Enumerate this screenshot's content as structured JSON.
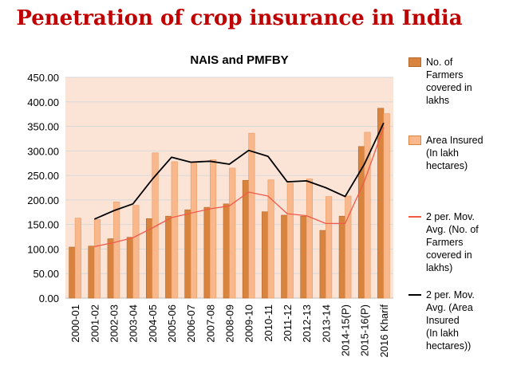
{
  "slide": {
    "title": "Penetration of crop insurance in India"
  },
  "chart_data": {
    "type": "bar",
    "title": "NAIS and PMFBY",
    "xlabel": "",
    "ylabel": "",
    "ylim": [
      0,
      450
    ],
    "yticks": [
      "0.00",
      "50.00",
      "100.00",
      "150.00",
      "200.00",
      "250.00",
      "300.00",
      "350.00",
      "400.00",
      "450.00"
    ],
    "grid": true,
    "legend_position": "right",
    "categories": [
      "2000-01",
      "2001-02",
      "2002-03",
      "2003-04",
      "2004-05",
      "2005-06",
      "2006-07",
      "2007-08",
      "2008-09",
      "2009-10",
      "2010-11",
      "2011-12",
      "2012-13",
      "2013-14",
      "2014-15(P)",
      "2015-16(P)",
      "2016 Kharif"
    ],
    "series": [
      {
        "name": "No. of Farmers covered in lakhs",
        "kind": "bar",
        "color": "#d9843e",
        "values": [
          104,
          106,
          121,
          124,
          162,
          167,
          180,
          185,
          192,
          240,
          176,
          169,
          167,
          138,
          167,
          309,
          387
        ]
      },
      {
        "name": "Area Insured (In lakh hectares)",
        "kind": "bar",
        "color": "#f8b88b",
        "values": [
          163,
          160,
          196,
          189,
          296,
          278,
          277,
          282,
          265,
          336,
          241,
          234,
          243,
          207,
          208,
          338,
          376
        ]
      },
      {
        "name": "2 per. Mov. Avg. (No. of Farmers covered in lakhs)",
        "kind": "line",
        "color": "#f05a4a",
        "values": [
          null,
          105,
          113,
          123,
          143,
          164,
          173,
          182,
          188,
          216,
          208,
          172,
          168,
          152,
          152,
          238,
          348
        ]
      },
      {
        "name": "2 per. Mov. Avg. (Area Insured (In lakh hectares))",
        "kind": "line",
        "color": "#000000",
        "values": [
          null,
          161,
          178,
          192,
          242,
          287,
          277,
          279,
          273,
          301,
          289,
          237,
          239,
          225,
          207,
          273,
          357
        ]
      }
    ]
  },
  "legend": {
    "items": [
      {
        "lines": [
          "No. of",
          "Farmers",
          "covered in",
          "lakhs"
        ]
      },
      {
        "lines": [
          "Area Insured",
          "(In lakh",
          "hectares)"
        ]
      },
      {
        "lines": [
          "2 per. Mov.",
          "Avg. (No. of",
          "Farmers",
          "covered in",
          "lakhs)"
        ]
      },
      {
        "lines": [
          "2 per. Mov.",
          "Avg. (Area",
          "Insured",
          "(In lakh",
          "hectares))"
        ]
      }
    ]
  }
}
